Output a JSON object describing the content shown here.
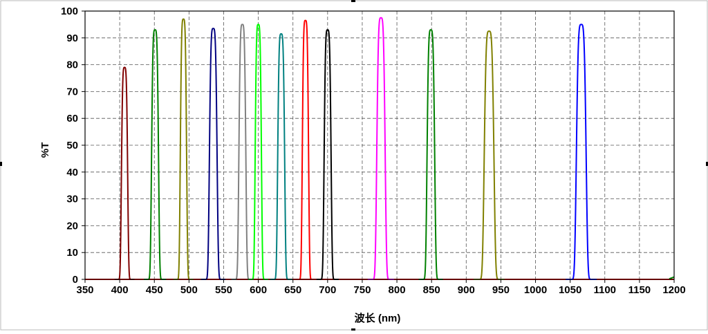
{
  "chart_data": {
    "type": "line",
    "title": "",
    "xlabel": "波长 (nm)",
    "ylabel": "%T",
    "xlim": [
      350,
      1200
    ],
    "ylim": [
      0,
      100
    ],
    "x_ticks": [
      350,
      400,
      450,
      500,
      550,
      600,
      650,
      700,
      750,
      800,
      850,
      900,
      950,
      1000,
      1050,
      1100,
      1150,
      1200
    ],
    "y_ticks": [
      0,
      10,
      20,
      30,
      40,
      50,
      60,
      70,
      80,
      90,
      100
    ],
    "x_tick_labels": [
      "350",
      "400",
      "450",
      "500",
      "550",
      "600",
      "650",
      "700",
      "750",
      "800",
      "850",
      "900",
      "950",
      "1000",
      "1050",
      "1100",
      "1150",
      "1200"
    ],
    "y_tick_labels": [
      "0",
      "10",
      "20",
      "30",
      "40",
      "50",
      "60",
      "70",
      "80",
      "90",
      "100"
    ],
    "grid": true,
    "grid_style": "dashed",
    "legend": "none",
    "series": [
      {
        "color": "#800000",
        "center": 407,
        "peak": 79,
        "fwhm": 9
      },
      {
        "color": "#008000",
        "center": 451,
        "peak": 93,
        "fwhm": 10
      },
      {
        "color": "#808000",
        "center": 492,
        "peak": 97,
        "fwhm": 9
      },
      {
        "color": "#000080",
        "center": 535,
        "peak": 93.5,
        "fwhm": 11
      },
      {
        "color": "#808080",
        "center": 577,
        "peak": 95,
        "fwhm": 10
      },
      {
        "color": "#00ff00",
        "center": 600,
        "peak": 95,
        "fwhm": 9
      },
      {
        "color": "#008080",
        "center": 633,
        "peak": 91.5,
        "fwhm": 10
      },
      {
        "color": "#ff0000",
        "center": 668,
        "peak": 96.5,
        "fwhm": 9
      },
      {
        "color": "#000000",
        "center": 700,
        "peak": 93,
        "fwhm": 10
      },
      {
        "color": "#ff00ff",
        "center": 777,
        "peak": 97.5,
        "fwhm": 12
      },
      {
        "color": "#008000",
        "center": 849,
        "peak": 93,
        "fwhm": 11
      },
      {
        "color": "#808000",
        "center": 933,
        "peak": 92.5,
        "fwhm": 14
      },
      {
        "color": "#0000ff",
        "center": 1066,
        "peak": 95,
        "fwhm": 14
      }
    ]
  }
}
